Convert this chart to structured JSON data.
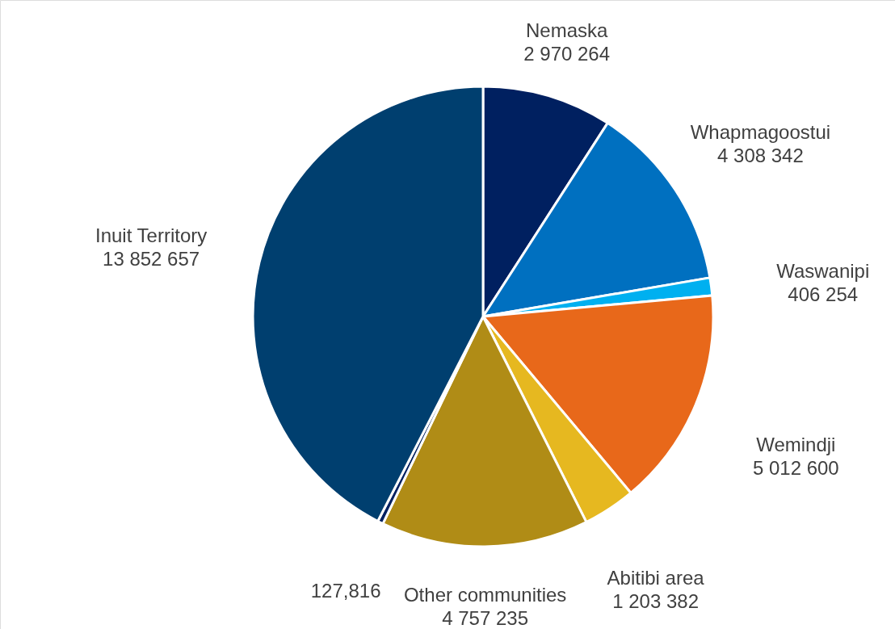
{
  "chart_data": {
    "type": "pie",
    "categories": [
      "Nemaska",
      "Whapmagoostui",
      "Waswanipi",
      "Wemindji",
      "Abitibi area",
      "Other communities",
      null,
      "Inuit Territory"
    ],
    "values": [
      2970264,
      4308342,
      406254,
      5012600,
      1203382,
      4757235,
      127816,
      13852657
    ],
    "value_labels": [
      "2 970 264",
      "4 308 342",
      "406 254",
      "5 012 600",
      "1 203 382",
      "4 757 235",
      "127,816",
      "13 852 657"
    ],
    "colors": [
      "#002060",
      "#0070c0",
      "#00b0f0",
      "#e8681a",
      "#e6b820",
      "#b08c16",
      "#002060",
      "#003f6f"
    ]
  }
}
